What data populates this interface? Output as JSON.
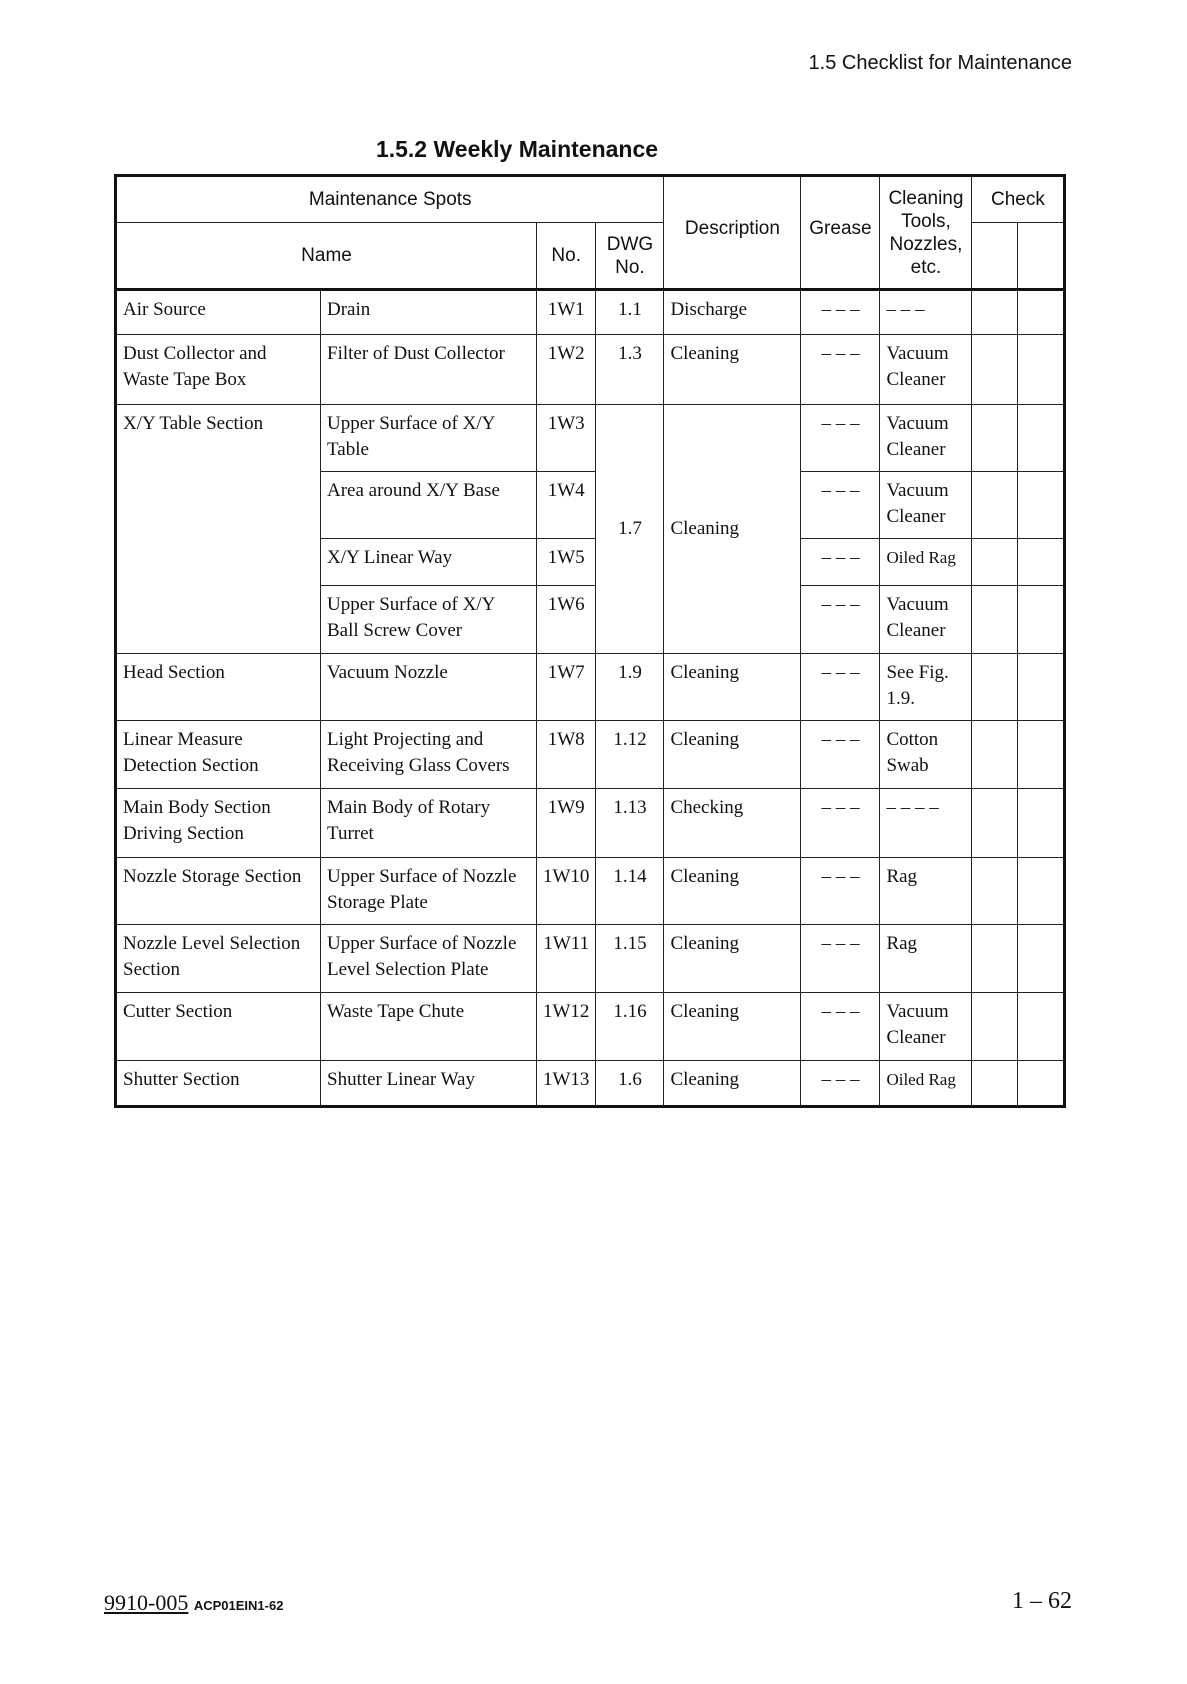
{
  "running_head": "1.5 Checklist for Maintenance",
  "title": "1.5.2 Weekly Maintenance",
  "headers": {
    "maintenance_spots": "Maintenance Spots",
    "name": "Name",
    "no": "No.",
    "dwg_no": "DWG No.",
    "description": "Description",
    "grease": "Grease",
    "cleaning_tools": "Cleaning Tools, Nozzles, etc.",
    "check": "Check"
  },
  "rows": [
    {
      "section": "Air Source",
      "name": "Drain",
      "no": "1W1",
      "dwg": "1.1",
      "description": "Discharge",
      "grease": "– – –",
      "tools": "– – –"
    },
    {
      "section": "Dust Collector and Waste Tape Box",
      "name": "Filter of Dust Collector",
      "no": "1W2",
      "dwg": "1.3",
      "description": "Cleaning",
      "grease": "– – –",
      "tools": "Vacuum Cleaner"
    },
    {
      "section": "X/Y Table Section",
      "name": "Upper Surface of X/Y Table",
      "no": "1W3",
      "dwg": "1.7",
      "description": "Cleaning",
      "grease": "– – –",
      "tools": "Vacuum Cleaner"
    },
    {
      "name": "Area around X/Y Base",
      "no": "1W4",
      "grease": "– – –",
      "tools": "Vacuum Cleaner"
    },
    {
      "name": "X/Y Linear Way",
      "no": "1W5",
      "grease": "– – –",
      "tools": "Oiled Rag"
    },
    {
      "name": "Upper Surface of X/Y Ball Screw Cover",
      "no": "1W6",
      "grease": "– – –",
      "tools": "Vacuum Cleaner"
    },
    {
      "section": "Head Section",
      "name": "Vacuum Nozzle",
      "no": "1W7",
      "dwg": "1.9",
      "description": "Cleaning",
      "grease": "– – –",
      "tools": "See Fig. 1.9."
    },
    {
      "section": "Linear Measure Detection Section",
      "name": "Light Projecting and Receiving Glass Covers",
      "no": "1W8",
      "dwg": "1.12",
      "description": "Cleaning",
      "grease": "– – –",
      "tools": "Cotton Swab"
    },
    {
      "section": "Main Body Section Driving Section",
      "name": "Main Body of Rotary Turret",
      "no": "1W9",
      "dwg": "1.13",
      "description": "Checking",
      "grease": "– – –",
      "tools": "– – – –"
    },
    {
      "section": "Nozzle Storage Section",
      "name": "Upper Surface of Nozzle Storage Plate",
      "no": "1W10",
      "dwg": "1.14",
      "description": "Cleaning",
      "grease": "– – –",
      "tools": "Rag"
    },
    {
      "section": "Nozzle Level Selection Section",
      "name": "Upper Surface of Nozzle Level Selection Plate",
      "no": "1W11",
      "dwg": "1.15",
      "description": "Cleaning",
      "grease": "– – –",
      "tools": "Rag"
    },
    {
      "section": "Cutter Section",
      "name": "Waste Tape Chute",
      "no": "1W12",
      "dwg": "1.16",
      "description": "Cleaning",
      "grease": "– – –",
      "tools": "Vacuum Cleaner"
    },
    {
      "section": "Shutter Section",
      "name": "Shutter Linear Way",
      "no": "1W13",
      "dwg": "1.6",
      "description": "Cleaning",
      "grease": "– – –",
      "tools": "Oiled Rag"
    }
  ],
  "footer": {
    "doc_code": "9910-005",
    "doc_id": "ACP01EIN1-62",
    "page": "1 – 62"
  }
}
